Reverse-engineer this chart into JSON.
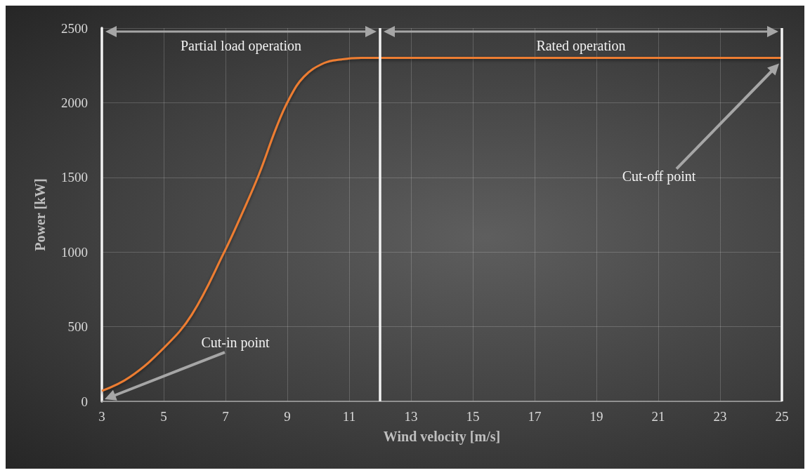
{
  "chart_data": {
    "type": "line",
    "xlabel": "Wind velocity [m/s]",
    "ylabel": "Power [kW]",
    "x": [
      3,
      3.9,
      5.03,
      5.91,
      6.96,
      7.52,
      8.08,
      8.65,
      9.05,
      9.53,
      10.18,
      10.74,
      11.38,
      12,
      14,
      16,
      18,
      20,
      22,
      24,
      25
    ],
    "series": [
      {
        "color": "#ed7d31",
        "values": [
          70,
          162,
          363,
          581,
          1000,
          1251,
          1519,
          1837,
          2022,
          2173,
          2265,
          2290,
          2300,
          2300,
          2300,
          2300,
          2300,
          2300,
          2300,
          2300,
          2300
        ]
      }
    ],
    "xlim": [
      3,
      25
    ],
    "xticks": [
      3,
      5,
      7,
      9,
      11,
      13,
      15,
      17,
      19,
      21,
      23,
      25
    ],
    "ylim": [
      0,
      2500
    ],
    "yticks": [
      0,
      500,
      1000,
      1500,
      2000,
      2500
    ],
    "grid": true,
    "marker": "none",
    "line_style": "solid",
    "ref_lines": [
      {
        "axis": "x",
        "value": 12,
        "color": "#f2f2f2"
      },
      {
        "axis": "x",
        "value": 25,
        "color": "#f2f2f2"
      }
    ],
    "annotations": [
      "Partial load operation",
      "Rated operation",
      "Cut-in point",
      "Cut-off point"
    ]
  }
}
